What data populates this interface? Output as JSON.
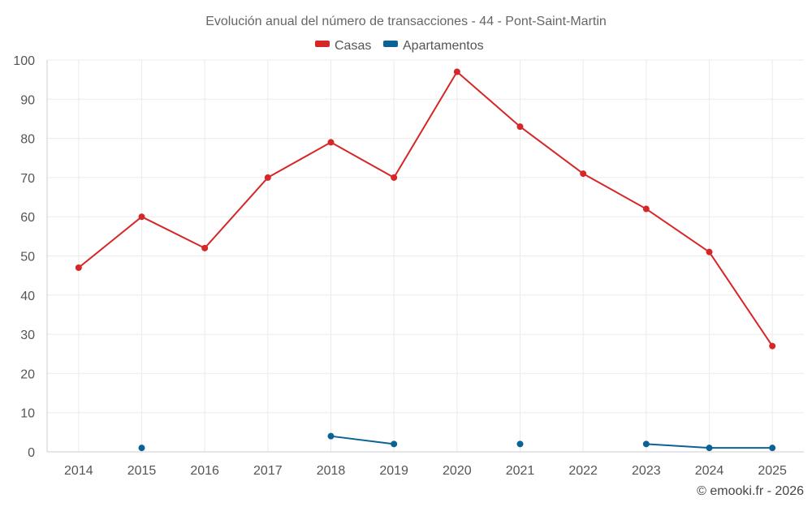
{
  "chart_data": {
    "type": "line",
    "title": "Evolución anual del número de transacciones - 44 - Pont-Saint-Martin",
    "categories": [
      "2014",
      "2015",
      "2016",
      "2017",
      "2018",
      "2019",
      "2020",
      "2021",
      "2022",
      "2023",
      "2024",
      "2025"
    ],
    "y_ticks": [
      "0",
      "10",
      "20",
      "30",
      "40",
      "50",
      "60",
      "70",
      "80",
      "90",
      "100"
    ],
    "ylim": [
      0,
      100
    ],
    "xlabel": "",
    "ylabel": "",
    "grid": true,
    "legend_position": "top-center",
    "series": [
      {
        "name": "Casas",
        "color": "#d62728",
        "values": [
          47,
          60,
          52,
          70,
          79,
          70,
          97,
          83,
          71,
          62,
          51,
          27
        ]
      },
      {
        "name": "Apartamentos",
        "color": "#0a6396",
        "values": [
          null,
          1,
          null,
          null,
          4,
          2,
          null,
          2,
          null,
          2,
          1,
          1
        ]
      }
    ]
  },
  "credit": "© emooki.fr - 2026"
}
